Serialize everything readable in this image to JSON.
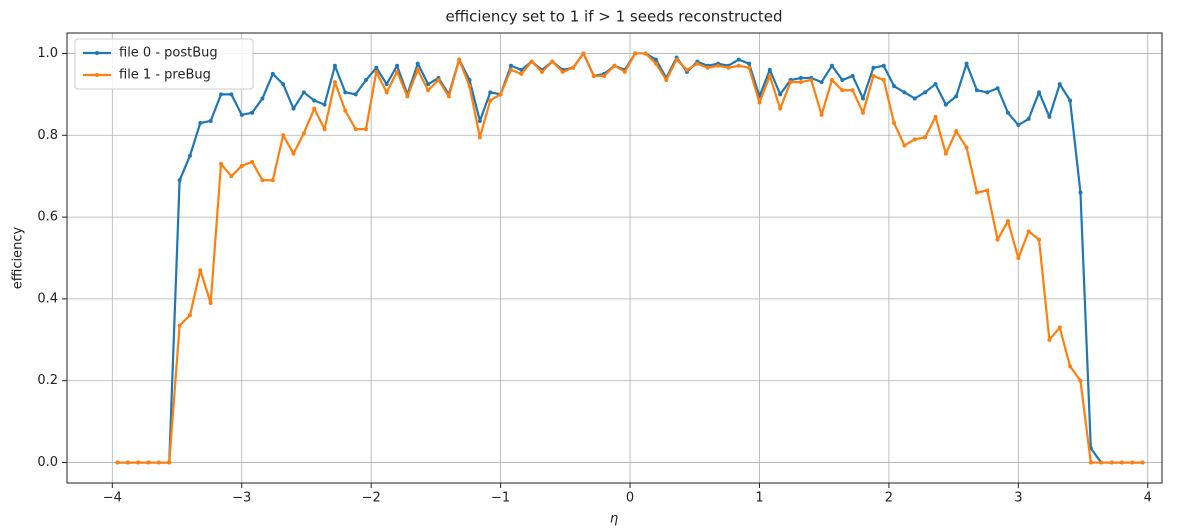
{
  "chart_data": {
    "type": "line",
    "title": "efficiency set to 1 if > 1 seeds reconstructed",
    "xlabel": "η",
    "ylabel": "efficiency",
    "x": [
      -3.96,
      -3.88,
      -3.8,
      -3.72,
      -3.64,
      -3.56,
      -3.48,
      -3.4,
      -3.32,
      -3.24,
      -3.16,
      -3.08,
      -3.0,
      -2.92,
      -2.84,
      -2.76,
      -2.68,
      -2.6,
      -2.52,
      -2.44,
      -2.36,
      -2.28,
      -2.2,
      -2.12,
      -2.04,
      -1.96,
      -1.88,
      -1.8,
      -1.72,
      -1.64,
      -1.56,
      -1.48,
      -1.4,
      -1.32,
      -1.24,
      -1.16,
      -1.08,
      -1.0,
      -0.92,
      -0.84,
      -0.76,
      -0.68,
      -0.6,
      -0.52,
      -0.44,
      -0.36,
      -0.28,
      -0.2,
      -0.12,
      -0.04,
      0.04,
      0.12,
      0.2,
      0.28,
      0.36,
      0.44,
      0.52,
      0.6,
      0.68,
      0.76,
      0.84,
      0.92,
      1.0,
      1.08,
      1.16,
      1.24,
      1.32,
      1.4,
      1.48,
      1.56,
      1.64,
      1.72,
      1.8,
      1.88,
      1.96,
      2.04,
      2.12,
      2.2,
      2.28,
      2.36,
      2.44,
      2.52,
      2.6,
      2.68,
      2.76,
      2.84,
      2.92,
      3.0,
      3.08,
      3.16,
      3.24,
      3.32,
      3.4,
      3.48,
      3.56,
      3.64,
      3.72,
      3.8,
      3.88,
      3.96
    ],
    "series": [
      {
        "name": "file 0 - postBug",
        "color": "#1f77b4",
        "values": [
          0,
          0,
          0,
          0,
          0,
          0,
          0.69,
          0.75,
          0.83,
          0.835,
          0.9,
          0.9,
          0.85,
          0.855,
          0.89,
          0.95,
          0.925,
          0.865,
          0.905,
          0.885,
          0.875,
          0.97,
          0.905,
          0.9,
          0.935,
          0.965,
          0.925,
          0.97,
          0.9,
          0.975,
          0.925,
          0.94,
          0.9,
          0.985,
          0.935,
          0.835,
          0.905,
          0.9,
          0.97,
          0.96,
          0.98,
          0.96,
          0.98,
          0.96,
          0.965,
          1.0,
          0.945,
          0.95,
          0.97,
          0.96,
          1.0,
          1.0,
          0.985,
          0.94,
          0.99,
          0.955,
          0.98,
          0.97,
          0.975,
          0.97,
          0.985,
          0.975,
          0.895,
          0.96,
          0.9,
          0.935,
          0.94,
          0.94,
          0.93,
          0.97,
          0.935,
          0.945,
          0.89,
          0.965,
          0.97,
          0.92,
          0.905,
          0.89,
          0.905,
          0.925,
          0.875,
          0.895,
          0.975,
          0.91,
          0.905,
          0.915,
          0.855,
          0.825,
          0.84,
          0.905,
          0.845,
          0.925,
          0.885,
          0.66,
          0.035,
          0,
          0,
          0,
          0,
          0
        ]
      },
      {
        "name": "file 1 - preBug",
        "color": "#ff7f0e",
        "values": [
          0,
          0,
          0,
          0,
          0,
          0,
          0.335,
          0.36,
          0.47,
          0.39,
          0.73,
          0.7,
          0.725,
          0.735,
          0.69,
          0.69,
          0.8,
          0.755,
          0.805,
          0.865,
          0.815,
          0.93,
          0.86,
          0.815,
          0.815,
          0.955,
          0.905,
          0.955,
          0.895,
          0.96,
          0.91,
          0.935,
          0.895,
          0.985,
          0.92,
          0.795,
          0.885,
          0.9,
          0.96,
          0.95,
          0.98,
          0.955,
          0.98,
          0.955,
          0.965,
          1.0,
          0.945,
          0.945,
          0.97,
          0.955,
          1.0,
          1.0,
          0.975,
          0.935,
          0.985,
          0.96,
          0.975,
          0.965,
          0.97,
          0.965,
          0.97,
          0.965,
          0.88,
          0.945,
          0.865,
          0.93,
          0.93,
          0.935,
          0.85,
          0.935,
          0.91,
          0.91,
          0.855,
          0.945,
          0.935,
          0.83,
          0.775,
          0.79,
          0.795,
          0.845,
          0.755,
          0.81,
          0.77,
          0.66,
          0.665,
          0.545,
          0.59,
          0.5,
          0.565,
          0.545,
          0.3,
          0.33,
          0.235,
          0.2,
          0,
          0,
          0,
          0,
          0,
          0
        ]
      }
    ],
    "xlim": [
      -4.35,
      4.11
    ],
    "ylim": [
      -0.05,
      1.05
    ],
    "xticks": [
      {
        "value": -4,
        "label": "−4"
      },
      {
        "value": -3,
        "label": "−3"
      },
      {
        "value": -2,
        "label": "−2"
      },
      {
        "value": -1,
        "label": "−1"
      },
      0,
      1,
      2,
      3,
      4
    ],
    "yticks": [
      {
        "value": 0,
        "label": "0.0"
      },
      0.2,
      0.4,
      0.6,
      0.8,
      {
        "value": 1,
        "label": "1.0"
      }
    ],
    "grid": true,
    "legend": "upper left"
  }
}
